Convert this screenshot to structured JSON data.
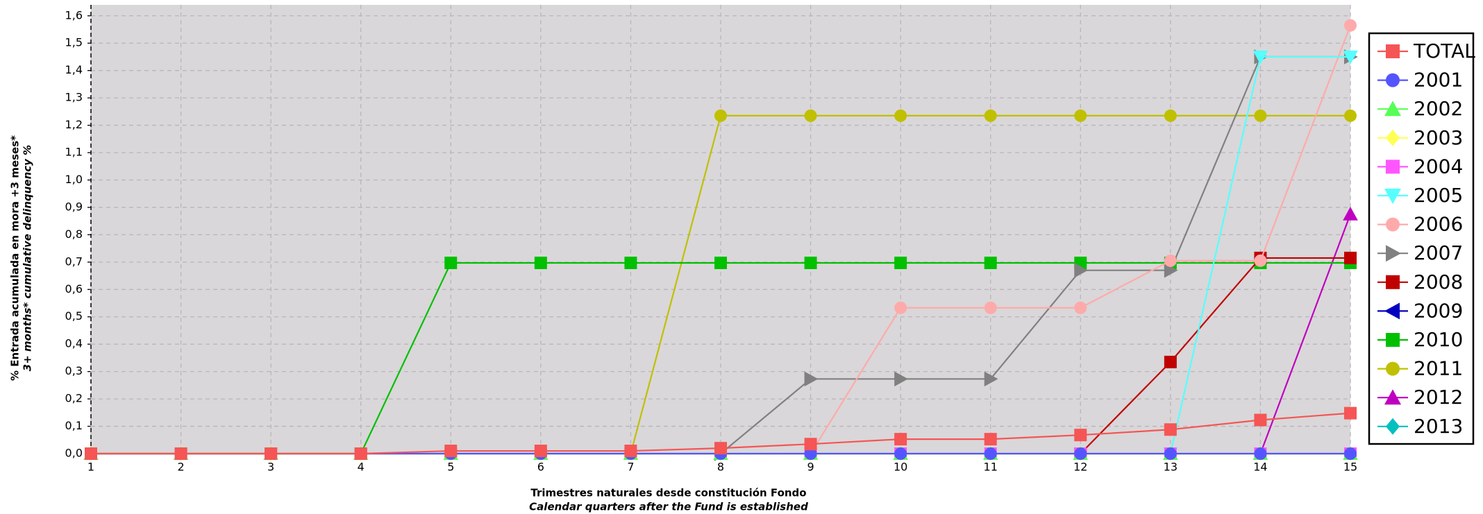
{
  "chart_data": {
    "type": "line",
    "y_title": "% Entrada acumulada en mora +3 meses*",
    "y_title_en": "3+ months* cumulative delinquency %",
    "x_title": "Trimestres naturales desde constitución Fondo",
    "x_title_en": "Calendar quarters after the Fund is established",
    "x": [
      1,
      2,
      3,
      4,
      5,
      6,
      7,
      8,
      9,
      10,
      11,
      12,
      13,
      14,
      15
    ],
    "xlim": [
      1,
      15
    ],
    "xticks": [
      1,
      2,
      3,
      4,
      5,
      6,
      7,
      8,
      9,
      10,
      11,
      12,
      13,
      14,
      15
    ],
    "ylim": [
      0,
      1.64
    ],
    "yticks": [
      {
        "value": 0,
        "label": "0,0"
      },
      {
        "value": 0.1,
        "label": "0,1"
      },
      {
        "value": 0.2,
        "label": "0,2"
      },
      {
        "value": 0.3,
        "label": "0,3"
      },
      {
        "value": 0.4,
        "label": "0,4"
      },
      {
        "value": 0.5,
        "label": "0,5"
      },
      {
        "value": 0.6,
        "label": "0,6"
      },
      {
        "value": 0.7,
        "label": "0,7"
      },
      {
        "value": 0.8,
        "label": "0,8"
      },
      {
        "value": 0.9,
        "label": "0,9"
      },
      {
        "value": 1.0,
        "label": "1,0"
      },
      {
        "value": 1.1,
        "label": "1,1"
      },
      {
        "value": 1.2,
        "label": "1,2"
      },
      {
        "value": 1.3,
        "label": "1,3"
      },
      {
        "value": 1.4,
        "label": "1,4"
      },
      {
        "value": 1.5,
        "label": "1,5"
      },
      {
        "value": 1.6,
        "label": "1,6"
      }
    ],
    "grid": true,
    "legend": "right",
    "plot_background": "#d9d7d9",
    "series": [
      {
        "name": "TOTAL",
        "color": "#f55555",
        "marker": "square",
        "values": [
          0,
          0,
          0,
          0,
          0.01,
          0.01,
          0.01,
          0.02,
          0.035,
          0.053,
          0.053,
          0.068,
          0.088,
          0.123,
          0.148
        ]
      },
      {
        "name": "2001",
        "color": "#5555ff",
        "marker": "circle",
        "values": [
          0,
          0,
          0,
          0,
          0,
          0,
          0,
          0,
          0,
          0,
          0,
          0,
          0,
          0,
          0
        ]
      },
      {
        "name": "2002",
        "color": "#55ff55",
        "marker": "triangle-up",
        "values": [
          0,
          0,
          0,
          0,
          0,
          0,
          0,
          0,
          0,
          0,
          0,
          0,
          0,
          0,
          0
        ]
      },
      {
        "name": "2003",
        "color": "#ffff55",
        "marker": "diamond",
        "values": [
          0,
          0,
          0,
          0,
          0,
          0,
          0,
          0,
          0,
          0,
          0,
          0,
          0,
          0,
          0
        ]
      },
      {
        "name": "2004",
        "color": "#ff55ff",
        "marker": "square",
        "values": [
          0,
          0,
          0,
          0,
          0,
          0,
          0,
          0,
          0,
          0,
          0,
          0,
          0,
          0,
          0
        ]
      },
      {
        "name": "2005",
        "color": "#55ffff",
        "marker": "triangle-down",
        "values": [
          null,
          null,
          null,
          null,
          null,
          null,
          null,
          null,
          null,
          null,
          null,
          null,
          0,
          1.45,
          1.45
        ]
      },
      {
        "name": "2006",
        "color": "#ffaaaa",
        "marker": "circle",
        "values": [
          null,
          null,
          null,
          null,
          null,
          null,
          null,
          null,
          0,
          0.533,
          0.533,
          0.533,
          0.705,
          0.705,
          1.565
        ]
      },
      {
        "name": "2007",
        "color": "#808080",
        "marker": "triangle-right",
        "values": [
          null,
          null,
          null,
          null,
          null,
          null,
          null,
          0,
          0.273,
          0.273,
          0.273,
          0.67,
          0.67,
          1.45,
          1.45
        ]
      },
      {
        "name": "2008",
        "color": "#c00000",
        "marker": "square",
        "values": [
          null,
          null,
          null,
          null,
          null,
          null,
          null,
          null,
          null,
          null,
          null,
          0,
          0.335,
          0.715,
          0.715
        ]
      },
      {
        "name": "2009",
        "color": "#0000c0",
        "marker": "triangle-left",
        "values": [
          null,
          null,
          null,
          null,
          null,
          null,
          null,
          null,
          null,
          null,
          null,
          null,
          null,
          null,
          null
        ]
      },
      {
        "name": "2010",
        "color": "#00c000",
        "marker": "square",
        "values": [
          0,
          0,
          0,
          0,
          0.697,
          0.697,
          0.697,
          0.697,
          0.697,
          0.697,
          0.697,
          0.697,
          0.697,
          0.697,
          0.697
        ]
      },
      {
        "name": "2011",
        "color": "#c0c000",
        "marker": "circle",
        "values": [
          null,
          null,
          null,
          null,
          null,
          null,
          0,
          1.235,
          1.235,
          1.235,
          1.235,
          1.235,
          1.235,
          1.235,
          1.235
        ]
      },
      {
        "name": "2012",
        "color": "#c000c0",
        "marker": "triangle-up",
        "values": [
          null,
          null,
          null,
          null,
          null,
          null,
          null,
          null,
          null,
          null,
          null,
          null,
          null,
          0,
          0.875
        ]
      },
      {
        "name": "2013",
        "color": "#00c0c0",
        "marker": "diamond",
        "values": [
          null,
          null,
          null,
          null,
          null,
          null,
          null,
          null,
          null,
          null,
          null,
          null,
          null,
          null,
          null
        ]
      }
    ]
  }
}
